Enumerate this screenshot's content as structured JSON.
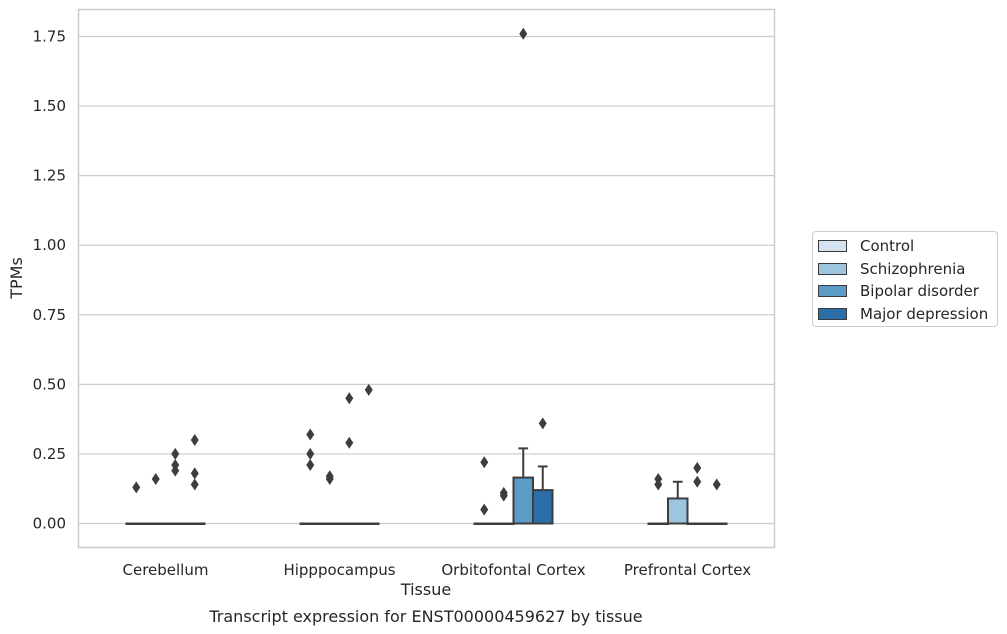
{
  "chart_data": {
    "type": "box",
    "title": "",
    "caption": "Transcript expression for ENST00000459627 by tissue",
    "xlabel": "Tissue",
    "ylabel": "TPMs",
    "categories": [
      "Cerebellum",
      "Hipppocampus",
      "Orbitofontal Cortex",
      "Prefrontal Cortex"
    ],
    "ylim": [
      -0.09,
      1.85
    ],
    "yticks": [
      "0.00",
      "0.25",
      "0.50",
      "0.75",
      "1.00",
      "1.25",
      "1.50",
      "1.75"
    ],
    "ytick_values": [
      0,
      0.25,
      0.5,
      0.75,
      1.0,
      1.25,
      1.5,
      1.75
    ],
    "grid": "horizontal",
    "legend_position": "right",
    "series": [
      {
        "name": "Control",
        "color": "#d3e3f2",
        "boxes": [
          {
            "min": 0,
            "q1": 0,
            "median": 0,
            "q3": 0,
            "max": 0,
            "outliers": [
              0.13
            ]
          },
          {
            "min": 0,
            "q1": 0,
            "median": 0,
            "q3": 0,
            "max": 0,
            "outliers": [
              0.32,
              0.25,
              0.21
            ]
          },
          {
            "min": 0,
            "q1": 0,
            "median": 0,
            "q3": 0,
            "max": 0,
            "outliers": [
              0.22,
              0.05
            ]
          },
          {
            "min": 0,
            "q1": 0,
            "median": 0,
            "q3": 0,
            "max": 0,
            "outliers": [
              0.16,
              0.14
            ]
          }
        ]
      },
      {
        "name": "Schizophrenia",
        "color": "#9dc5e0",
        "boxes": [
          {
            "min": 0,
            "q1": 0,
            "median": 0,
            "q3": 0,
            "max": 0,
            "outliers": [
              0.16
            ]
          },
          {
            "min": 0,
            "q1": 0,
            "median": 0,
            "q3": 0,
            "max": 0,
            "outliers": [
              0.17,
              0.16
            ]
          },
          {
            "min": 0,
            "q1": 0,
            "median": 0,
            "q3": 0,
            "max": 0,
            "outliers": [
              0.11,
              0.1
            ]
          },
          {
            "min": 0,
            "q1": 0,
            "median": 0,
            "q3": 0.09,
            "max": 0.15,
            "outliers": []
          }
        ]
      },
      {
        "name": "Bipolar disorder",
        "color": "#5a9bc8",
        "boxes": [
          {
            "min": 0,
            "q1": 0,
            "median": 0,
            "q3": 0,
            "max": 0,
            "outliers": [
              0.25,
              0.21,
              0.19
            ]
          },
          {
            "min": 0,
            "q1": 0,
            "median": 0,
            "q3": 0,
            "max": 0,
            "outliers": [
              0.45,
              0.29
            ]
          },
          {
            "min": 0,
            "q1": 0,
            "median": 0,
            "q3": 0.165,
            "max": 0.27,
            "outliers": [
              1.76
            ]
          },
          {
            "min": 0,
            "q1": 0,
            "median": 0,
            "q3": 0,
            "max": 0,
            "outliers": [
              0.2,
              0.15
            ]
          }
        ]
      },
      {
        "name": "Major depression",
        "color": "#2c6ea9",
        "boxes": [
          {
            "min": 0,
            "q1": 0,
            "median": 0,
            "q3": 0,
            "max": 0,
            "outliers": [
              0.3,
              0.18,
              0.14
            ]
          },
          {
            "min": 0,
            "q1": 0,
            "median": 0,
            "q3": 0,
            "max": 0,
            "outliers": [
              0.48
            ]
          },
          {
            "min": 0,
            "q1": 0,
            "median": 0,
            "q3": 0.12,
            "max": 0.205,
            "outliers": [
              0.36
            ]
          },
          {
            "min": 0,
            "q1": 0,
            "median": 0,
            "q3": 0,
            "max": 0,
            "outliers": [
              0.14
            ]
          }
        ]
      }
    ]
  }
}
